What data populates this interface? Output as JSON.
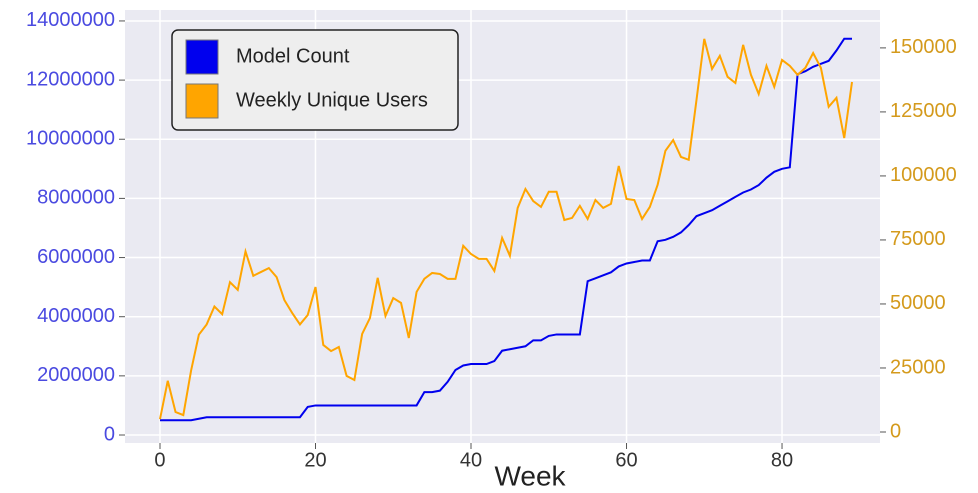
{
  "chart_data": {
    "type": "line",
    "xlabel": "Week",
    "x": [
      0,
      1,
      2,
      3,
      4,
      5,
      6,
      7,
      8,
      9,
      10,
      11,
      12,
      13,
      14,
      15,
      16,
      17,
      18,
      19,
      20,
      21,
      22,
      23,
      24,
      25,
      26,
      27,
      28,
      29,
      30,
      31,
      32,
      33,
      34,
      35,
      36,
      37,
      38,
      39,
      40,
      41,
      42,
      43,
      44,
      45,
      46,
      47,
      48,
      49,
      50,
      51,
      52,
      53,
      54,
      55,
      56,
      57,
      58,
      59,
      60,
      61,
      62,
      63,
      64,
      65,
      66,
      67,
      68,
      69,
      70,
      71,
      72,
      73,
      74,
      75,
      76,
      77,
      78,
      79,
      80,
      81,
      82,
      83,
      84,
      85,
      86,
      87,
      88,
      89
    ],
    "series": [
      {
        "name": "Model Count",
        "color": "#0000ee",
        "axis": "y",
        "values": [
          500000,
          500000,
          500000,
          500000,
          500000,
          550000,
          600000,
          600000,
          600000,
          600000,
          600000,
          600000,
          600000,
          600000,
          600000,
          600000,
          600000,
          600000,
          600000,
          950000,
          1000000,
          1000000,
          1000000,
          1000000,
          1000000,
          1000000,
          1000000,
          1000000,
          1000000,
          1000000,
          1000000,
          1000000,
          1000000,
          1000000,
          1450000,
          1450000,
          1500000,
          1800000,
          2200000,
          2350000,
          2400000,
          2400000,
          2400000,
          2500000,
          2850000,
          2900000,
          2950000,
          3000000,
          3200000,
          3200000,
          3350000,
          3400000,
          3400000,
          3400000,
          3400000,
          5200000,
          5300000,
          5400000,
          5500000,
          5700000,
          5800000,
          5850000,
          5900000,
          5900000,
          6550000,
          6600000,
          6700000,
          6850000,
          7100000,
          7400000,
          7500000,
          7600000,
          7750000,
          7900000,
          8050000,
          8200000,
          8300000,
          8450000,
          8700000,
          8900000,
          9000000,
          9050000,
          12200000,
          12300000,
          12450000,
          12550000,
          12650000,
          13000000,
          13400000,
          13400000
        ]
      },
      {
        "name": "Weekly Unique Users",
        "color": "#ffa500",
        "axis": "y2",
        "values": [
          5000,
          20000,
          7800,
          6600,
          24000,
          38000,
          42000,
          49000,
          46000,
          58500,
          55500,
          70500,
          61000,
          62500,
          64000,
          60500,
          51500,
          46500,
          42000,
          45700,
          56600,
          34000,
          31600,
          33200,
          21900,
          20300,
          38300,
          44500,
          60200,
          45300,
          52300,
          50400,
          36700,
          54700,
          59800,
          62100,
          61700,
          59800,
          59800,
          72700,
          69500,
          67600,
          67600,
          62900,
          75800,
          68800,
          87500,
          94900,
          90200,
          87900,
          93800,
          93800,
          82800,
          83600,
          88300,
          83200,
          90600,
          87500,
          89100,
          103900,
          91000,
          90600,
          83200,
          87900,
          96500,
          109800,
          114000,
          107400,
          106300,
          129700,
          153500,
          141800,
          146900,
          138700,
          136300,
          151200,
          139500,
          132000,
          143000,
          134800,
          145300,
          143000,
          139500,
          142200,
          148000,
          142200,
          127000,
          130500,
          114800,
          136700
        ]
      }
    ],
    "xlim": [
      -4.5,
      92.6
    ],
    "xticks": [
      0,
      20,
      40,
      60,
      80
    ],
    "ylim": [
      -270000,
      14370000
    ],
    "yticks": [
      0,
      2000000,
      4000000,
      6000000,
      8000000,
      10000000,
      12000000,
      14000000
    ],
    "y2lim": [
      -4300,
      164800
    ],
    "y2ticks": [
      0,
      25000,
      50000,
      75000,
      100000,
      125000,
      150000
    ],
    "grid": true,
    "legend": "upper left"
  }
}
